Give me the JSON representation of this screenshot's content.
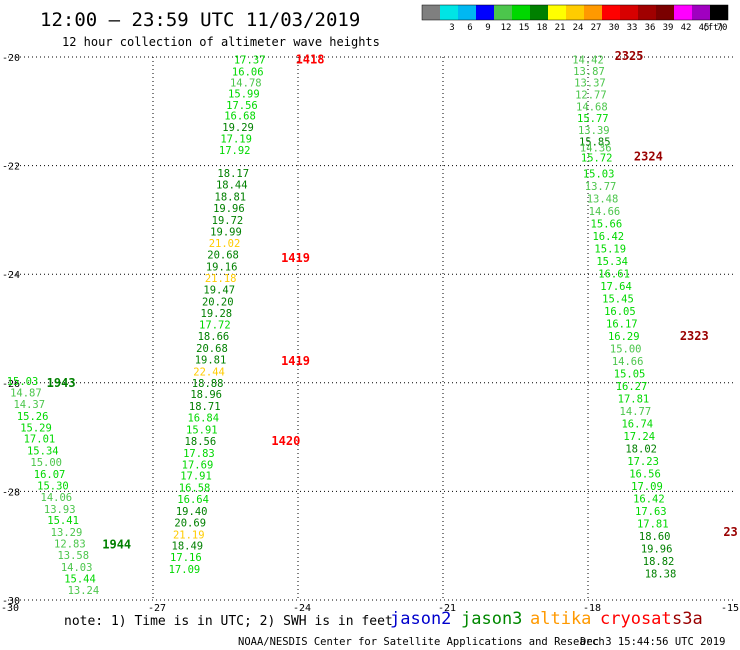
{
  "header": {
    "title": "12:00 — 23:59 UTC 11/03/2019",
    "subtitle": "12 hour collection of altimeter wave heights"
  },
  "colorbar": {
    "unit": "(ft)",
    "levels": [
      {
        "label": "",
        "color": "#7f7f7f"
      },
      {
        "label": "3",
        "color": "#00e5e5"
      },
      {
        "label": "6",
        "color": "#00b8f2"
      },
      {
        "label": "9",
        "color": "#0000ff"
      },
      {
        "label": "12",
        "color": "#4cc64c"
      },
      {
        "label": "15",
        "color": "#00d800"
      },
      {
        "label": "18",
        "color": "#008000"
      },
      {
        "label": "21",
        "color": "#ffff00"
      },
      {
        "label": "24",
        "color": "#ffcc00"
      },
      {
        "label": "27",
        "color": "#ff9900"
      },
      {
        "label": "30",
        "color": "#ff0000"
      },
      {
        "label": "33",
        "color": "#d80000"
      },
      {
        "label": "36",
        "color": "#a00000"
      },
      {
        "label": "39",
        "color": "#7a0000"
      },
      {
        "label": "42",
        "color": "#ff00ff"
      },
      {
        "label": "45",
        "color": "#a000c0"
      },
      {
        "label": "70",
        "color": "#000000"
      }
    ]
  },
  "footer": {
    "note": "note:  1) Time is in UTC; 2) SWH is in feet",
    "satellites": [
      {
        "name": "jason2",
        "color": "#0000cc"
      },
      {
        "name": "jason3",
        "color": "#008800"
      },
      {
        "name": "altika",
        "color": "#ff9900"
      },
      {
        "name": "cryosat",
        "color": "#ff0000"
      },
      {
        "name": "s3a",
        "color": "#990000"
      }
    ],
    "credit": "NOAA/NESDIS Center for Satellite Applications and Research",
    "timestamp": "Dec  3 15:44:56 UTC 2019"
  },
  "chart_data": {
    "type": "scatter",
    "xlim": [
      -30,
      -15
    ],
    "ylim": [
      -30,
      -20
    ],
    "xticks": [
      -30,
      -27,
      -24,
      -21,
      -18,
      -15
    ],
    "yticks": [
      -20,
      -22,
      -24,
      -26,
      -28,
      -30
    ],
    "xtick_labels": [
      "-30",
      "-27",
      "-24",
      "-21",
      "-18",
      "-15"
    ],
    "ytick_labels": [
      "-20",
      "-22",
      "-24",
      "-26",
      "-28",
      "-30"
    ],
    "grid": true,
    "legend": "bottom",
    "tracks": [
      {
        "name": "1418-1420 track",
        "points": [
          {
            "x": -25.0,
            "y": -20.05,
            "v": "17.37",
            "c": "#00d800"
          },
          {
            "x": -25.04,
            "y": -20.27,
            "v": "16.06",
            "c": "#00d800"
          },
          {
            "x": -25.08,
            "y": -20.47,
            "v": "14.78",
            "c": "#4cc64c"
          },
          {
            "x": -25.12,
            "y": -20.67,
            "v": "15.99",
            "c": "#00d800"
          },
          {
            "x": -25.16,
            "y": -20.88,
            "v": "17.56",
            "c": "#00d800"
          },
          {
            "x": -25.2,
            "y": -21.08,
            "v": "16.68",
            "c": "#00d800"
          },
          {
            "x": -25.24,
            "y": -21.29,
            "v": "19.29",
            "c": "#008000"
          },
          {
            "x": -25.28,
            "y": -21.5,
            "v": "17.19",
            "c": "#00d800"
          },
          {
            "x": -25.31,
            "y": -21.71,
            "v": "17.92",
            "c": "#00d800"
          },
          {
            "x": -25.34,
            "y": -22.14,
            "v": "18.17",
            "c": "#008000"
          },
          {
            "x": -25.37,
            "y": -22.35,
            "v": "18.44",
            "c": "#008000"
          },
          {
            "x": -25.4,
            "y": -22.57,
            "v": "18.81",
            "c": "#008000"
          },
          {
            "x": -25.43,
            "y": -22.78,
            "v": "19.96",
            "c": "#008000"
          },
          {
            "x": -25.46,
            "y": -23.0,
            "v": "19.72",
            "c": "#008000"
          },
          {
            "x": -25.49,
            "y": -23.21,
            "v": "19.99",
            "c": "#008000"
          },
          {
            "x": -25.52,
            "y": -23.43,
            "v": "21.02",
            "c": "#ffcc00"
          },
          {
            "x": -25.55,
            "y": -23.64,
            "v": "20.68",
            "c": "#008000"
          },
          {
            "x": -25.58,
            "y": -23.86,
            "v": "19.16",
            "c": "#008000"
          },
          {
            "x": -25.6,
            "y": -24.07,
            "v": "21.18",
            "c": "#ffcc00"
          },
          {
            "x": -25.63,
            "y": -24.28,
            "v": "19.47",
            "c": "#008000"
          },
          {
            "x": -25.66,
            "y": -24.5,
            "v": "20.20",
            "c": "#008000"
          },
          {
            "x": -25.69,
            "y": -24.71,
            "v": "19.28",
            "c": "#008000"
          },
          {
            "x": -25.72,
            "y": -24.93,
            "v": "17.72",
            "c": "#00d800"
          },
          {
            "x": -25.75,
            "y": -25.14,
            "v": "18.66",
            "c": "#008000"
          },
          {
            "x": -25.78,
            "y": -25.36,
            "v": "20.68",
            "c": "#008000"
          },
          {
            "x": -25.81,
            "y": -25.57,
            "v": "19.81",
            "c": "#008000"
          },
          {
            "x": -25.84,
            "y": -25.79,
            "v": "22.44",
            "c": "#ffcc00"
          },
          {
            "x": -25.87,
            "y": -26.0,
            "v": "18.88",
            "c": "#008000"
          },
          {
            "x": -25.9,
            "y": -26.21,
            "v": "18.96",
            "c": "#008000"
          },
          {
            "x": -25.93,
            "y": -26.43,
            "v": "18.71",
            "c": "#008000"
          },
          {
            "x": -25.96,
            "y": -26.64,
            "v": "16.84",
            "c": "#00d800"
          },
          {
            "x": -25.99,
            "y": -26.86,
            "v": "15.91",
            "c": "#00d800"
          },
          {
            "x": -26.02,
            "y": -27.07,
            "v": "18.56",
            "c": "#008000"
          },
          {
            "x": -26.05,
            "y": -27.29,
            "v": "17.83",
            "c": "#00d800"
          },
          {
            "x": -26.08,
            "y": -27.5,
            "v": "17.69",
            "c": "#00d800"
          },
          {
            "x": -26.11,
            "y": -27.71,
            "v": "17.91",
            "c": "#00d800"
          },
          {
            "x": -26.14,
            "y": -27.93,
            "v": "16.58",
            "c": "#00d800"
          },
          {
            "x": -26.17,
            "y": -28.14,
            "v": "16.64",
            "c": "#00d800"
          },
          {
            "x": -26.2,
            "y": -28.36,
            "v": "19.40",
            "c": "#008000"
          },
          {
            "x": -26.23,
            "y": -28.57,
            "v": "20.69",
            "c": "#008000"
          },
          {
            "x": -26.26,
            "y": -28.79,
            "v": "21.19",
            "c": "#ffcc00"
          },
          {
            "x": -26.29,
            "y": -29.0,
            "v": "18.49",
            "c": "#008000"
          },
          {
            "x": -26.32,
            "y": -29.21,
            "v": "17.16",
            "c": "#00d800"
          },
          {
            "x": -26.35,
            "y": -29.43,
            "v": "17.09",
            "c": "#00d800"
          }
        ]
      },
      {
        "name": "1943-1944 track",
        "points": [
          {
            "x": -29.7,
            "y": -25.97,
            "v": "15.03",
            "c": "#00d800"
          },
          {
            "x": -29.63,
            "y": -26.18,
            "v": "14.87",
            "c": "#4cc64c"
          },
          {
            "x": -29.56,
            "y": -26.39,
            "v": "14.37",
            "c": "#4cc64c"
          },
          {
            "x": -29.49,
            "y": -26.61,
            "v": "15.26",
            "c": "#00d800"
          },
          {
            "x": -29.42,
            "y": -26.82,
            "v": "15.29",
            "c": "#00d800"
          },
          {
            "x": -29.35,
            "y": -27.03,
            "v": "17.01",
            "c": "#00d800"
          },
          {
            "x": -29.28,
            "y": -27.25,
            "v": "15.34",
            "c": "#00d800"
          },
          {
            "x": -29.21,
            "y": -27.46,
            "v": "15.00",
            "c": "#4cc64c"
          },
          {
            "x": -29.14,
            "y": -27.68,
            "v": "16.07",
            "c": "#00d800"
          },
          {
            "x": -29.07,
            "y": -27.89,
            "v": "15.30",
            "c": "#00d800"
          },
          {
            "x": -29.0,
            "y": -28.1,
            "v": "14.06",
            "c": "#4cc64c"
          },
          {
            "x": -28.93,
            "y": -28.32,
            "v": "13.93",
            "c": "#4cc64c"
          },
          {
            "x": -28.86,
            "y": -28.53,
            "v": "15.41",
            "c": "#00d800"
          },
          {
            "x": -28.79,
            "y": -28.75,
            "v": "13.29",
            "c": "#4cc64c"
          },
          {
            "x": -28.72,
            "y": -28.96,
            "v": "12.83",
            "c": "#4cc64c"
          },
          {
            "x": -28.65,
            "y": -29.17,
            "v": "13.58",
            "c": "#4cc64c"
          },
          {
            "x": -28.58,
            "y": -29.39,
            "v": "14.03",
            "c": "#4cc64c"
          },
          {
            "x": -28.51,
            "y": -29.6,
            "v": "15.44",
            "c": "#00d800"
          },
          {
            "x": -28.44,
            "y": -29.82,
            "v": "13.24",
            "c": "#4cc64c"
          }
        ]
      },
      {
        "name": "2323-2325 track",
        "points": [
          {
            "x": -18.0,
            "y": -20.05,
            "v": "14.42",
            "c": "#4cc64c"
          },
          {
            "x": -17.98,
            "y": -20.26,
            "v": "13.87",
            "c": "#4cc64c"
          },
          {
            "x": -17.96,
            "y": -20.47,
            "v": "13.37",
            "c": "#4cc64c"
          },
          {
            "x": -17.94,
            "y": -20.69,
            "v": "12.77",
            "c": "#4cc64c"
          },
          {
            "x": -17.92,
            "y": -20.91,
            "v": "14.68",
            "c": "#4cc64c"
          },
          {
            "x": -17.9,
            "y": -21.12,
            "v": "15.77",
            "c": "#00d800"
          },
          {
            "x": -17.88,
            "y": -21.34,
            "v": "13.39",
            "c": "#4cc64c"
          },
          {
            "x": -17.86,
            "y": -21.56,
            "v": "15.85",
            "c": "#008000"
          },
          {
            "x": -17.84,
            "y": -21.67,
            "v": "14.36",
            "c": "#4cc64c"
          },
          {
            "x": -17.82,
            "y": -21.85,
            "v": "15.72",
            "c": "#00d800"
          },
          {
            "x": -17.78,
            "y": -22.15,
            "v": "15.03",
            "c": "#00d800"
          },
          {
            "x": -17.74,
            "y": -22.38,
            "v": "13.77",
            "c": "#4cc64c"
          },
          {
            "x": -17.7,
            "y": -22.61,
            "v": "13.48",
            "c": "#4cc64c"
          },
          {
            "x": -17.66,
            "y": -22.84,
            "v": "14.66",
            "c": "#4cc64c"
          },
          {
            "x": -17.62,
            "y": -23.07,
            "v": "15.66",
            "c": "#00d800"
          },
          {
            "x": -17.58,
            "y": -23.3,
            "v": "16.42",
            "c": "#00d800"
          },
          {
            "x": -17.54,
            "y": -23.53,
            "v": "15.19",
            "c": "#00d800"
          },
          {
            "x": -17.5,
            "y": -23.76,
            "v": "15.34",
            "c": "#00d800"
          },
          {
            "x": -17.46,
            "y": -23.99,
            "v": "16.61",
            "c": "#00d800"
          },
          {
            "x": -17.42,
            "y": -24.22,
            "v": "17.64",
            "c": "#00d800"
          },
          {
            "x": -17.38,
            "y": -24.45,
            "v": "15.45",
            "c": "#00d800"
          },
          {
            "x": -17.34,
            "y": -24.68,
            "v": "16.05",
            "c": "#00d800"
          },
          {
            "x": -17.3,
            "y": -24.91,
            "v": "16.17",
            "c": "#00d800"
          },
          {
            "x": -17.26,
            "y": -25.14,
            "v": "16.29",
            "c": "#00d800"
          },
          {
            "x": -17.22,
            "y": -25.37,
            "v": "15.00",
            "c": "#4cc64c"
          },
          {
            "x": -17.18,
            "y": -25.6,
            "v": "14.66",
            "c": "#4cc64c"
          },
          {
            "x": -17.14,
            "y": -25.83,
            "v": "15.05",
            "c": "#00d800"
          },
          {
            "x": -17.1,
            "y": -26.06,
            "v": "16.27",
            "c": "#00d800"
          },
          {
            "x": -17.06,
            "y": -26.29,
            "v": "17.81",
            "c": "#00d800"
          },
          {
            "x": -17.02,
            "y": -26.52,
            "v": "14.77",
            "c": "#4cc64c"
          },
          {
            "x": -16.98,
            "y": -26.75,
            "v": "16.74",
            "c": "#00d800"
          },
          {
            "x": -16.94,
            "y": -26.98,
            "v": "17.24",
            "c": "#00d800"
          },
          {
            "x": -16.9,
            "y": -27.21,
            "v": "18.02",
            "c": "#008000"
          },
          {
            "x": -16.86,
            "y": -27.44,
            "v": "17.23",
            "c": "#00d800"
          },
          {
            "x": -16.82,
            "y": -27.67,
            "v": "16.56",
            "c": "#00d800"
          },
          {
            "x": -16.78,
            "y": -27.9,
            "v": "17.09",
            "c": "#00d800"
          },
          {
            "x": -16.74,
            "y": -28.13,
            "v": "16.42",
            "c": "#00d800"
          },
          {
            "x": -16.7,
            "y": -28.36,
            "v": "17.63",
            "c": "#00d800"
          },
          {
            "x": -16.66,
            "y": -28.59,
            "v": "17.81",
            "c": "#00d800"
          },
          {
            "x": -16.62,
            "y": -28.82,
            "v": "18.60",
            "c": "#008000"
          },
          {
            "x": -16.58,
            "y": -29.05,
            "v": "19.96",
            "c": "#008000"
          },
          {
            "x": -16.54,
            "y": -29.28,
            "v": "18.82",
            "c": "#008000"
          },
          {
            "x": -16.5,
            "y": -29.51,
            "v": "18.38",
            "c": "#008000"
          }
        ]
      }
    ],
    "pass_labels": [
      {
        "x": -24.05,
        "y": -20.05,
        "t": "1418",
        "c": "#ff0000"
      },
      {
        "x": -24.35,
        "y": -23.7,
        "t": "1419",
        "c": "#ff0000"
      },
      {
        "x": -24.35,
        "y": -25.6,
        "t": "1419",
        "c": "#ff0000"
      },
      {
        "x": -24.55,
        "y": -27.07,
        "t": "1420",
        "c": "#ff0000"
      },
      {
        "x": -29.2,
        "y": -26.0,
        "t": "1943",
        "c": "#008000"
      },
      {
        "x": -28.05,
        "y": -28.98,
        "t": "1944",
        "c": "#008000"
      },
      {
        "x": -17.45,
        "y": -19.98,
        "t": "2325",
        "c": "#990000"
      },
      {
        "x": -17.05,
        "y": -21.83,
        "t": "2324",
        "c": "#990000"
      },
      {
        "x": -16.1,
        "y": -25.14,
        "t": "2323",
        "c": "#990000"
      },
      {
        "x": -15.2,
        "y": -28.75,
        "t": "23",
        "c": "#990000"
      }
    ]
  }
}
